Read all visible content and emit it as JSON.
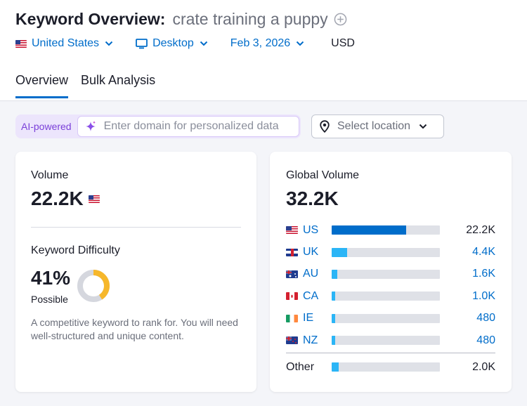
{
  "header": {
    "title": "Keyword Overview:",
    "keyword": "crate training a puppy",
    "add_icon": "plus-circle-icon",
    "filters": {
      "country": "United States",
      "device": "Desktop",
      "date": "Feb 3, 2026",
      "currency": "USD"
    },
    "tabs": [
      {
        "label": "Overview",
        "active": true
      },
      {
        "label": "Bulk Analysis",
        "active": false
      }
    ]
  },
  "toolbar": {
    "ai_label": "AI-powered",
    "domain_placeholder": "Enter domain for personalized data",
    "location_placeholder": "Select location"
  },
  "volume_card": {
    "volume_label": "Volume",
    "volume_value": "22.2K",
    "kd_label": "Keyword Difficulty",
    "kd_value": "41%",
    "kd_level": "Possible",
    "kd_fraction": 0.41,
    "kd_color": "#f6b72b",
    "description": "A competitive keyword to rank for. You will need well-structured and unique content."
  },
  "global_card": {
    "label": "Global Volume",
    "value": "32.2K",
    "countries": [
      {
        "code": "US",
        "flag": "us-flag",
        "value": "22.2K",
        "share": 0.69,
        "color": "#006dca",
        "link": false
      },
      {
        "code": "UK",
        "flag": "uk-flag",
        "value": "4.4K",
        "share": 0.14,
        "color": "#2bb5f6",
        "link": true
      },
      {
        "code": "AU",
        "flag": "au-flag",
        "value": "1.6K",
        "share": 0.05,
        "color": "#2bb5f6",
        "link": true
      },
      {
        "code": "CA",
        "flag": "ca-flag",
        "value": "1.0K",
        "share": 0.03,
        "color": "#2bb5f6",
        "link": true
      },
      {
        "code": "IE",
        "flag": "ie-flag",
        "value": "480",
        "share": 0.015,
        "color": "#2bb5f6",
        "link": true
      },
      {
        "code": "NZ",
        "flag": "nz-flag",
        "value": "480",
        "share": 0.015,
        "color": "#2bb5f6",
        "link": true
      }
    ],
    "other": {
      "label": "Other",
      "value": "2.0K",
      "share": 0.062,
      "color": "#2bb5f6"
    }
  },
  "colors": {
    "accent": "#006dca",
    "ai_purple": "#7a3fd9",
    "bar_light": "#2bb5f6",
    "bar_track": "#dfe1e7"
  }
}
